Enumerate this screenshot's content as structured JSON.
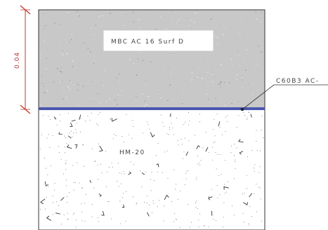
{
  "layers": {
    "top": {
      "label": "MBC  AC  16  Surf  D",
      "fill": "#c8c8c8"
    },
    "bottom": {
      "label": "HM-20",
      "fill": "#ffffff"
    }
  },
  "interface": {
    "label": "C60B3  AC-",
    "line_color": "#4a56b0"
  },
  "dimension": {
    "value": "0.04",
    "color": "#c0392b"
  }
}
